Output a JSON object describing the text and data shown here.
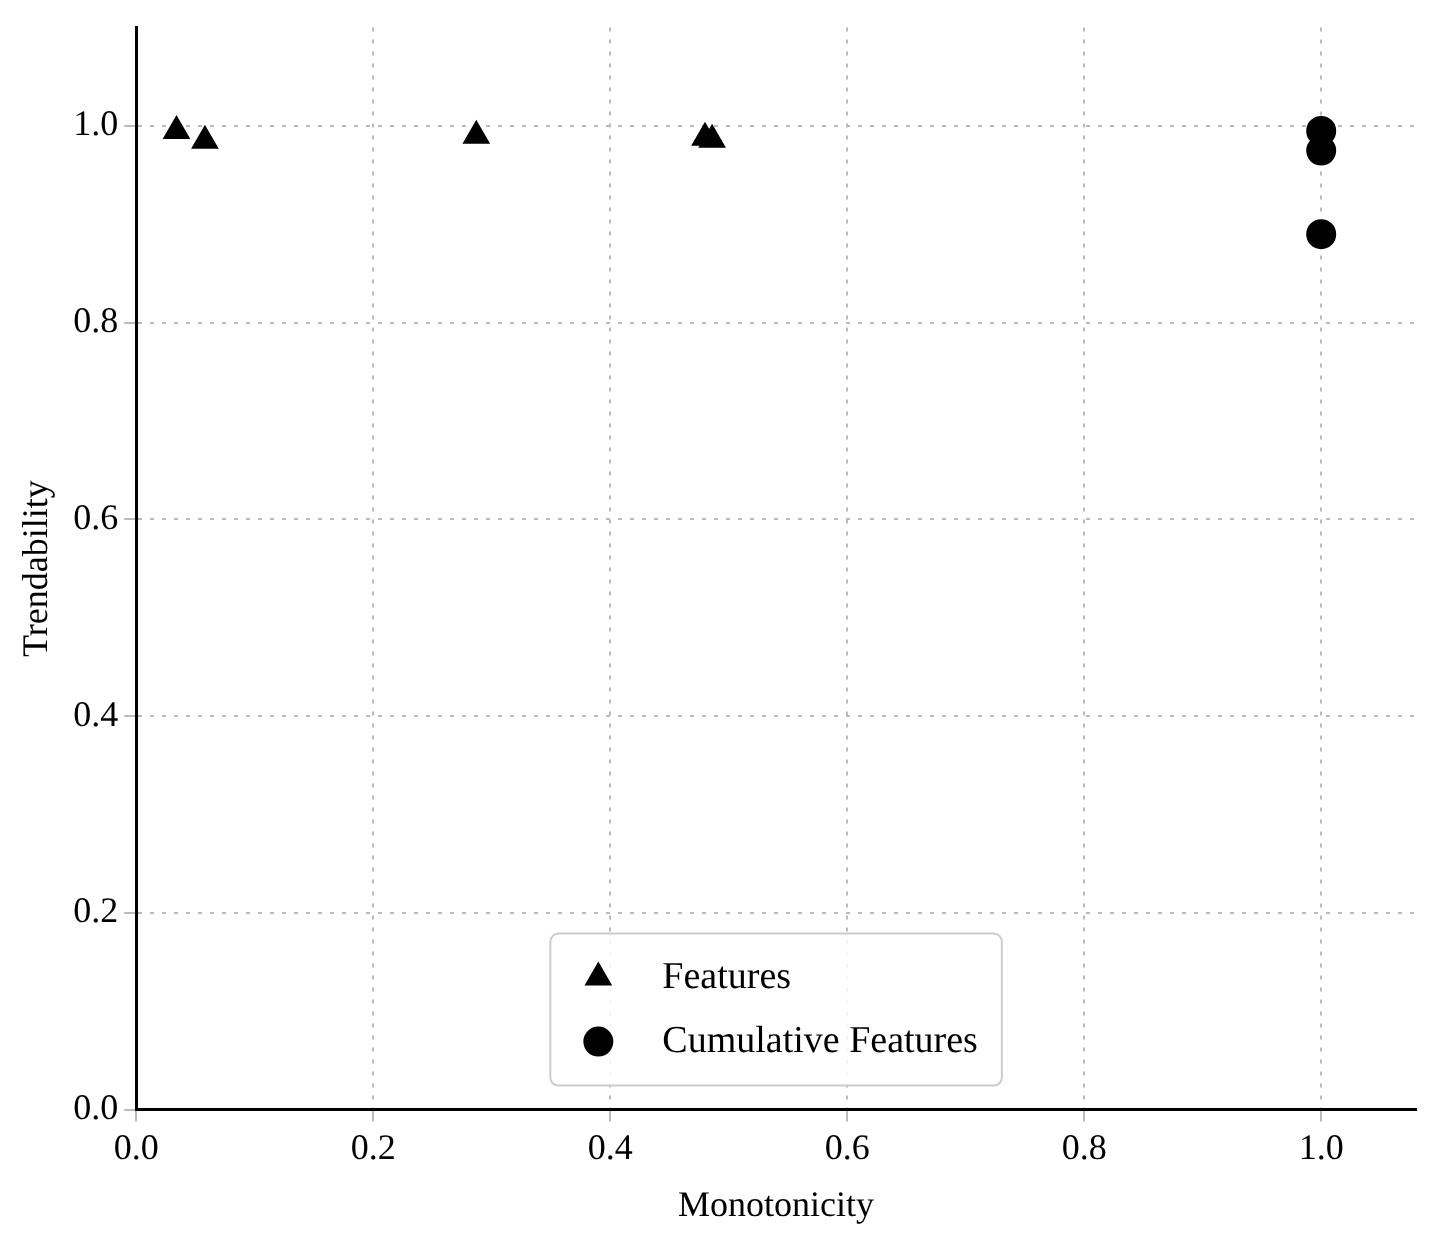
{
  "chart_data": {
    "type": "scatter",
    "xlabel": "Monotonicity",
    "ylabel": "Trendability",
    "xlim": [
      0,
      1.08
    ],
    "ylim": [
      0,
      1.1
    ],
    "xticks": [
      {
        "value": 0,
        "label": "0.0"
      },
      {
        "value": 0.2,
        "label": "0.2"
      },
      {
        "value": 0.4,
        "label": "0.4"
      },
      {
        "value": 0.6,
        "label": "0.6"
      },
      {
        "value": 0.8,
        "label": "0.8"
      },
      {
        "value": 1,
        "label": "1.0"
      }
    ],
    "yticks": [
      {
        "value": 0,
        "label": "0.0"
      },
      {
        "value": 0.2,
        "label": "0.2"
      },
      {
        "value": 0.4,
        "label": "0.4"
      },
      {
        "value": 0.6,
        "label": "0.6"
      },
      {
        "value": 0.8,
        "label": "0.8"
      },
      {
        "value": 1,
        "label": "1.0"
      }
    ],
    "grid": true,
    "legend": "bottom",
    "series": [
      {
        "name": "Features",
        "color": "#000000",
        "marker": "triangle",
        "x": [
          0.034,
          0.058,
          0.287,
          0.48,
          0.486
        ],
        "values": [
          0.995,
          0.985,
          0.99,
          0.988,
          0.986
        ]
      },
      {
        "name": "Cumulative Features",
        "color": "#000000",
        "marker": "circle",
        "x": [
          1,
          1,
          1
        ],
        "values": [
          0.995,
          0.975,
          0.89
        ]
      }
    ]
  }
}
